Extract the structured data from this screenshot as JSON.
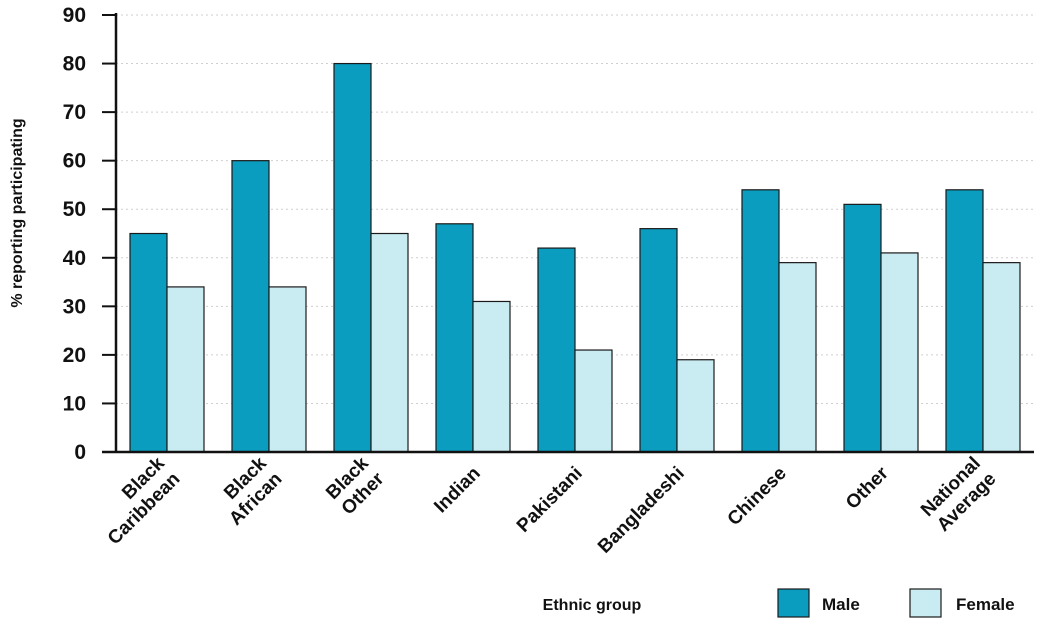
{
  "chart_data": {
    "type": "bar",
    "categories": [
      [
        "Black",
        "Caribbean"
      ],
      [
        "Black",
        "African"
      ],
      [
        "Black",
        "Other"
      ],
      [
        "Indian"
      ],
      [
        "Pakistani"
      ],
      [
        "Bangladeshi"
      ],
      [
        "Chinese"
      ],
      [
        "Other"
      ],
      [
        "National",
        "Average"
      ]
    ],
    "series": [
      {
        "name": "Male",
        "color": "#0a9dbf",
        "values": [
          45,
          60,
          80,
          47,
          42,
          46,
          54,
          51,
          54
        ]
      },
      {
        "name": "Female",
        "color": "#c9ebf2",
        "values": [
          34,
          34,
          45,
          31,
          21,
          19,
          39,
          41,
          39
        ]
      }
    ],
    "xlabel": "Ethnic group",
    "ylabel": "% reporting participating",
    "ylim": [
      0,
      90
    ],
    "yticks": [
      0,
      10,
      20,
      30,
      40,
      50,
      60,
      70,
      80,
      90
    ],
    "grid": true,
    "legend_position": "bottom-right"
  }
}
